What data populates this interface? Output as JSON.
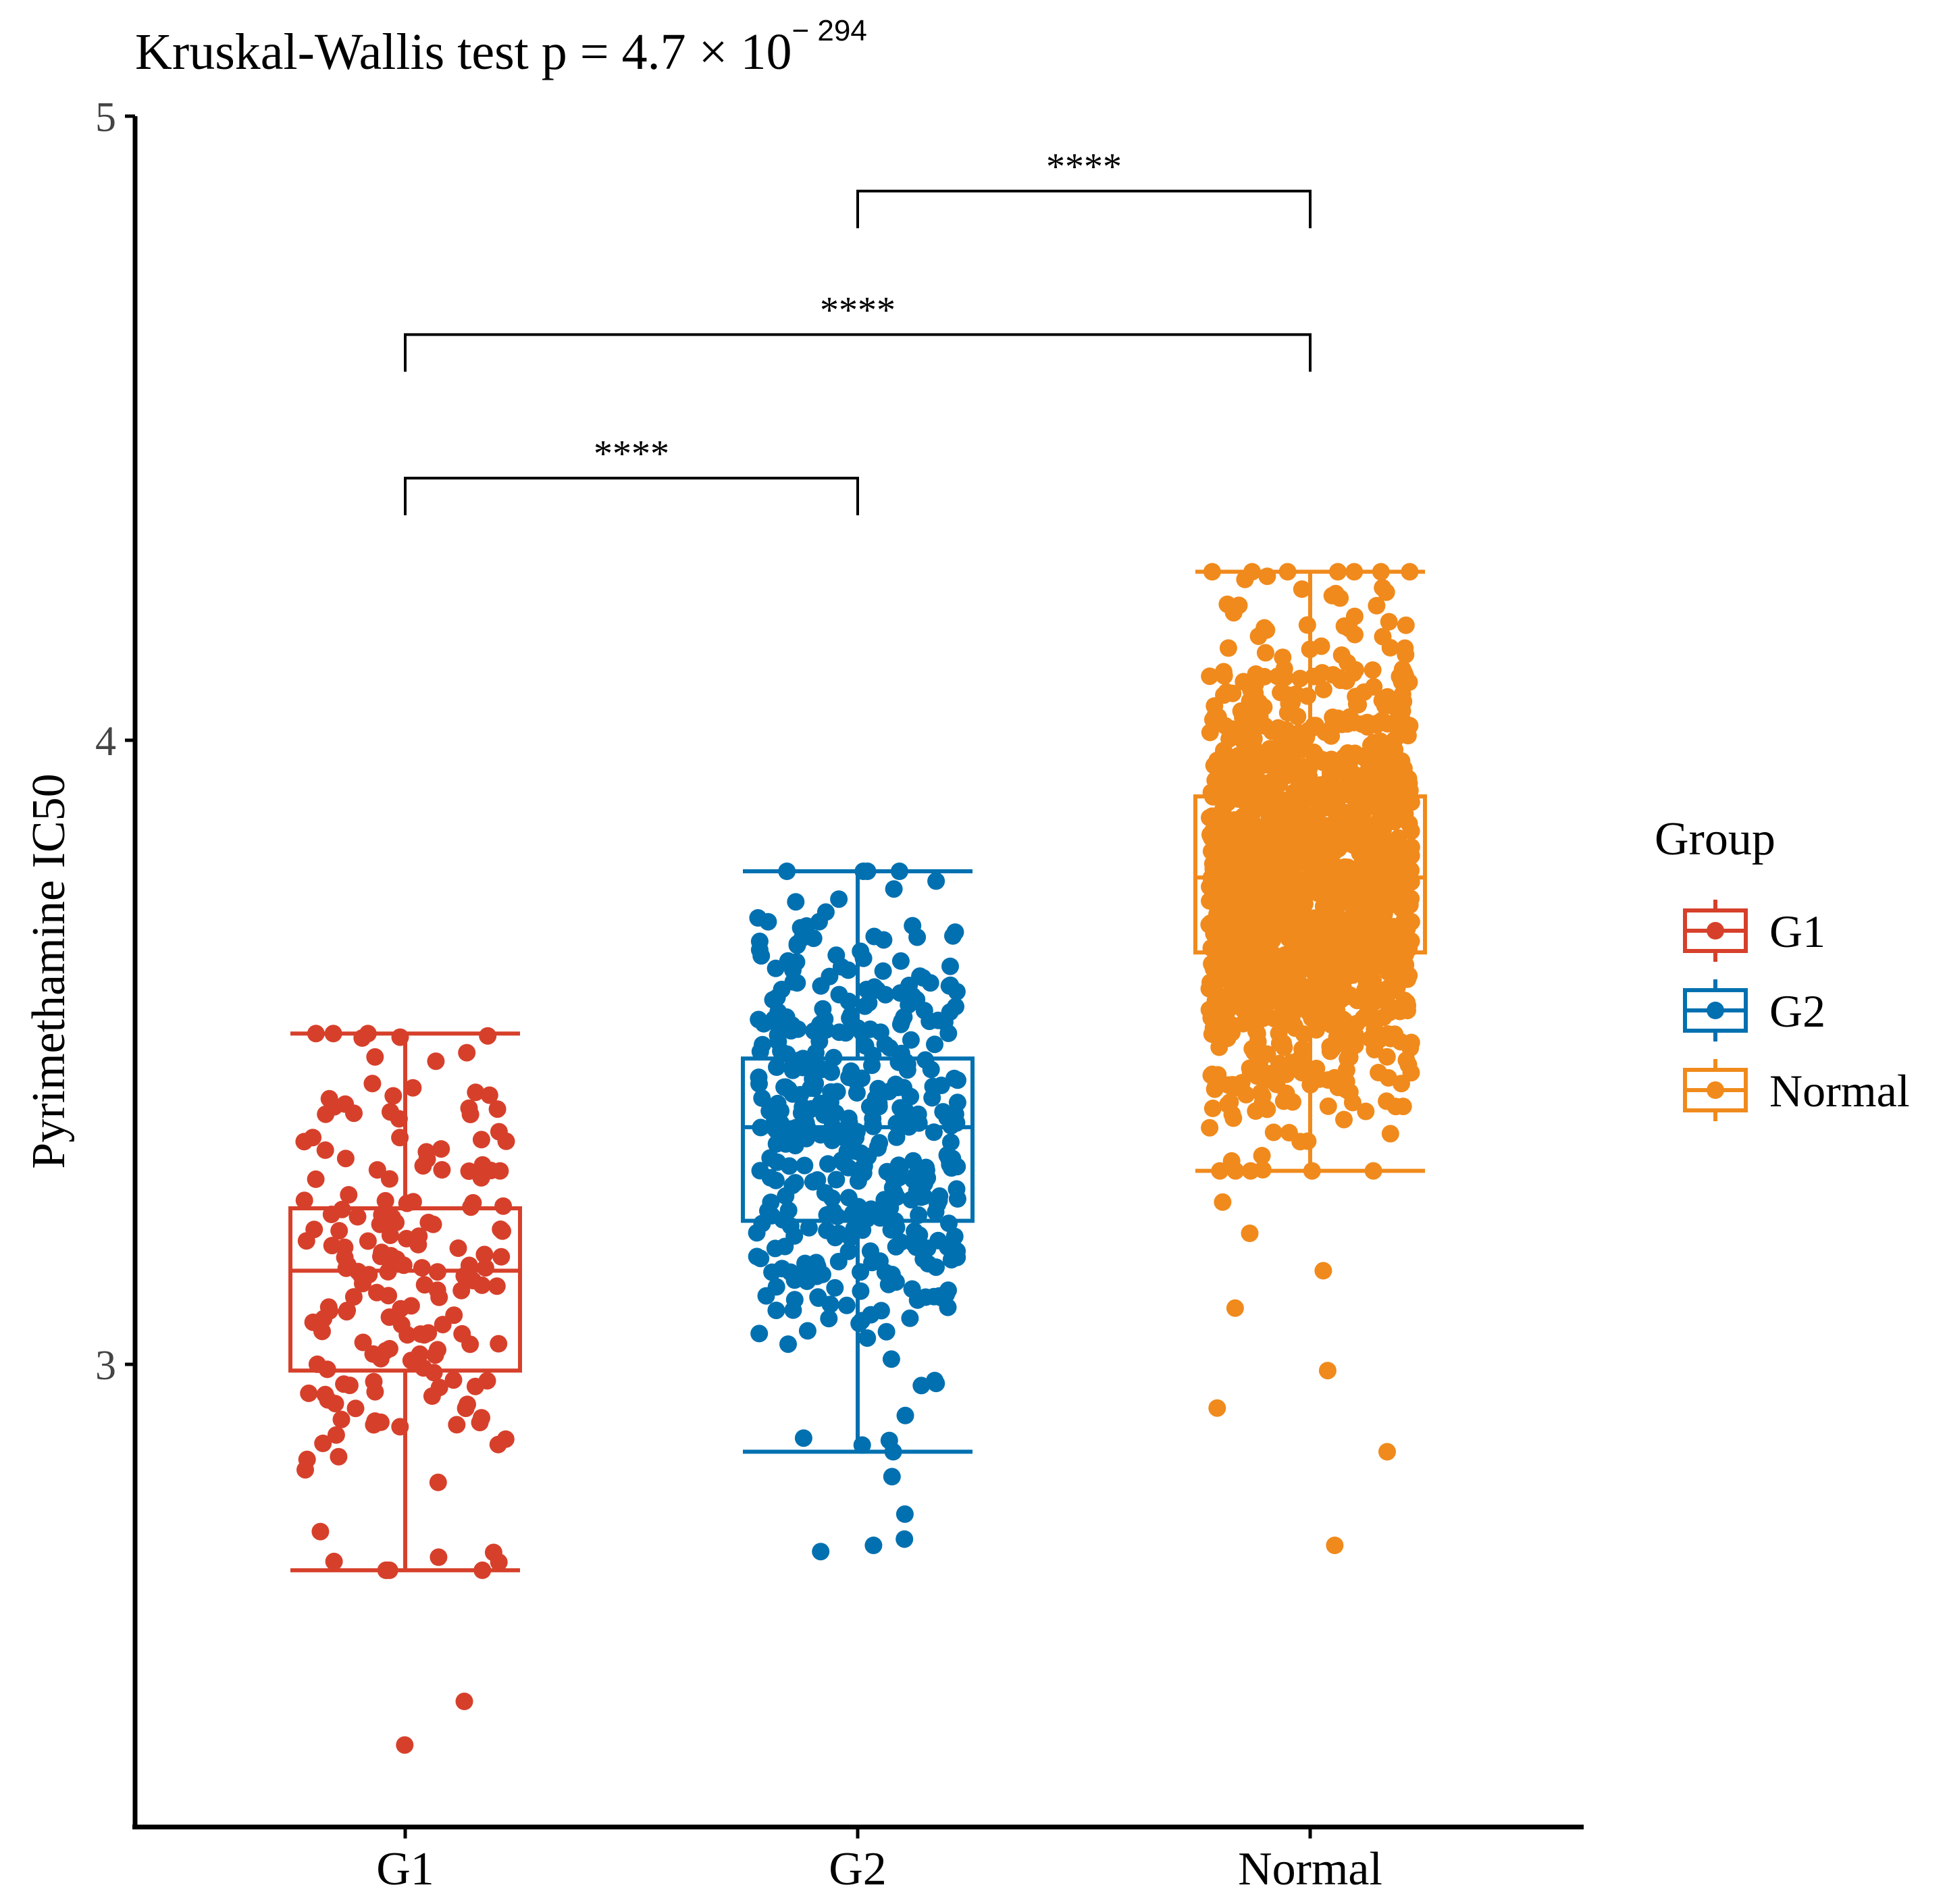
{
  "chart_data": {
    "type": "box",
    "title": "Kruskal-Wallis test p = 4.7 × 10",
    "title_exponent": "− 294",
    "xlabel": "",
    "ylabel": "Pyrimethamine IC50",
    "ylim": [
      2.35,
      5.0
    ],
    "yticks": [
      3,
      4,
      5
    ],
    "ytick_labels": [
      "3",
      "4",
      "5"
    ],
    "categories": [
      "G1",
      "G2",
      "Normal"
    ],
    "legend": {
      "title": "Group",
      "position": "right",
      "entries": [
        "G1",
        "G2",
        "Normal"
      ]
    },
    "colors": {
      "G1": "#d6402b",
      "G2": "#0070b0",
      "Normal": "#f08a1c"
    },
    "series": [
      {
        "name": "G1",
        "whisker_low": 2.67,
        "q1": 2.99,
        "median": 3.15,
        "q3": 3.25,
        "whisker_high": 3.53,
        "n_points": 180,
        "outliers": [
          2.39,
          2.46,
          2.67
        ]
      },
      {
        "name": "G2",
        "whisker_low": 2.86,
        "q1": 3.23,
        "median": 3.38,
        "q3": 3.49,
        "whisker_high": 3.79,
        "n_points": 420,
        "outliers": [
          2.7,
          2.71,
          2.72,
          2.76,
          2.82
        ]
      },
      {
        "name": "Normal",
        "whisker_low": 3.31,
        "q1": 3.66,
        "median": 3.78,
        "q3": 3.91,
        "whisker_high": 4.27,
        "n_points": 1400,
        "outliers": [
          2.71,
          2.86,
          2.93,
          2.99,
          3.09,
          3.15,
          3.21,
          3.26
        ]
      }
    ],
    "comparisons": [
      {
        "groups": [
          "G1",
          "G2"
        ],
        "label": "****",
        "y": 4.42
      },
      {
        "groups": [
          "G1",
          "Normal"
        ],
        "label": "****",
        "y": 4.65
      },
      {
        "groups": [
          "G2",
          "Normal"
        ],
        "label": "****",
        "y": 4.88
      }
    ]
  }
}
